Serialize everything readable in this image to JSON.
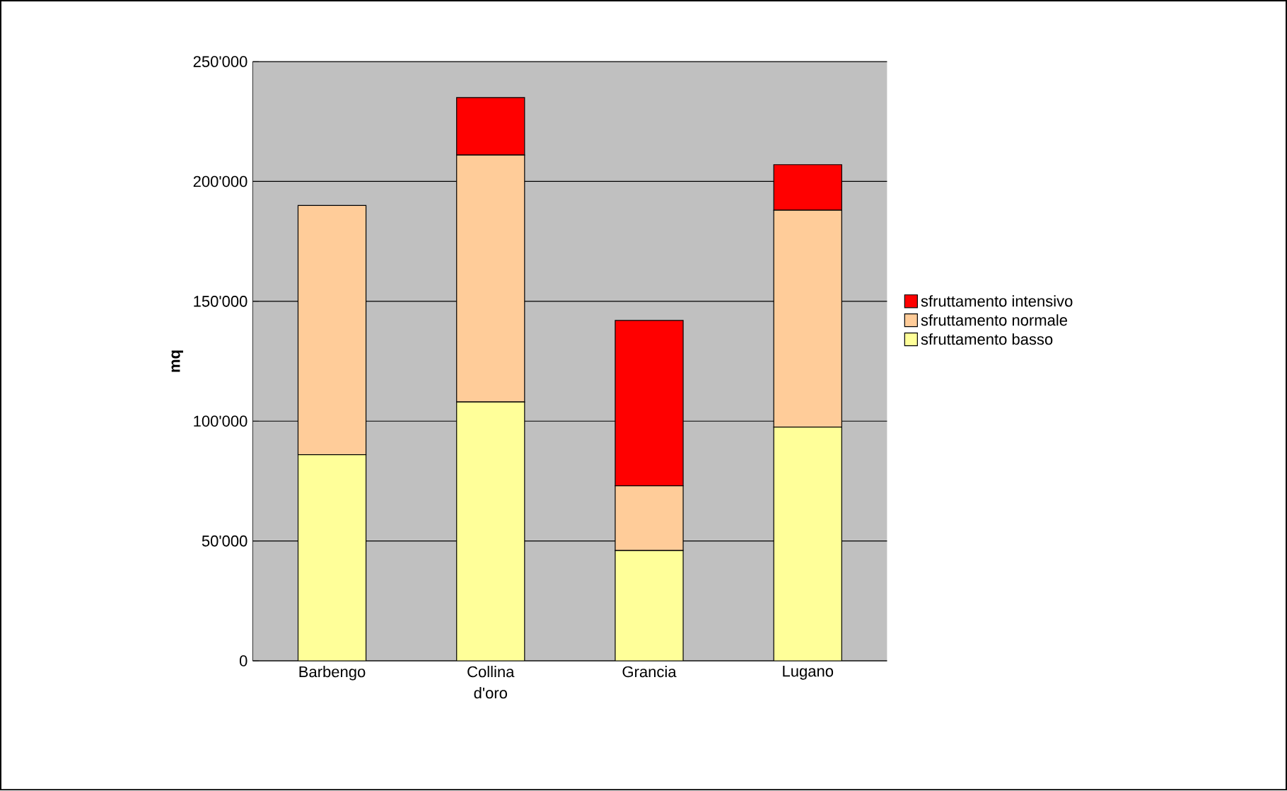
{
  "chart_data": {
    "type": "bar",
    "stacked": true,
    "ylabel": "mq",
    "categories": [
      "Barbengo",
      "Collina d'oro",
      "Grancia",
      "Lugano"
    ],
    "series": [
      {
        "name": "sfruttamento basso",
        "color": "#ffff99",
        "values": [
          86000,
          108000,
          46000,
          97500
        ]
      },
      {
        "name": "sfruttamento normale",
        "color": "#ffcc99",
        "values": [
          104000,
          103000,
          27000,
          90500
        ]
      },
      {
        "name": "sfruttamento intensivo",
        "color": "#ff0000",
        "values": [
          0,
          24000,
          69000,
          19000
        ]
      }
    ],
    "ylim": [
      0,
      250000
    ],
    "yticks": [
      {
        "value": 0,
        "label": "0"
      },
      {
        "value": 50000,
        "label": "50'000"
      },
      {
        "value": 100000,
        "label": "100'000"
      },
      {
        "value": 150000,
        "label": "150'000"
      },
      {
        "value": 200000,
        "label": "200'000"
      },
      {
        "value": 250000,
        "label": "250'000"
      }
    ],
    "grid": "y",
    "legend": "right"
  }
}
